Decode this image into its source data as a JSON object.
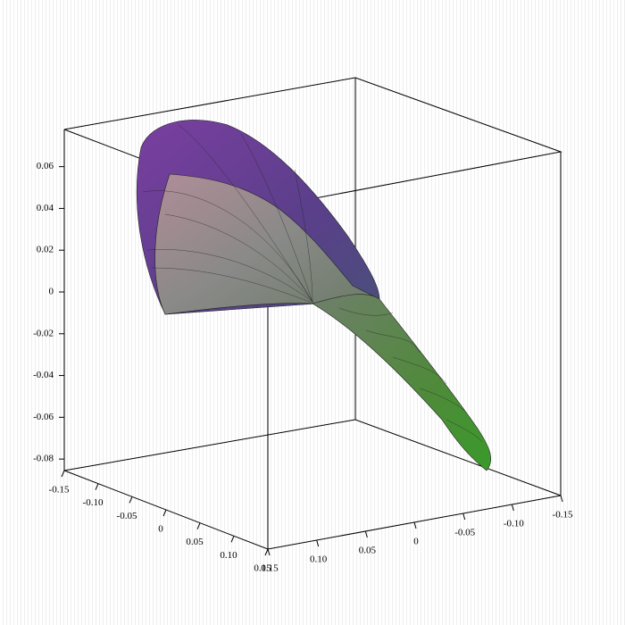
{
  "chart_data": {
    "type": "surface3d",
    "xlim": [
      -0.15,
      0.15
    ],
    "xticks": [
      -0.15,
      {
        "value": -0.1,
        "label": "-0.10"
      },
      -0.05,
      0,
      0.05,
      {
        "value": 0.1,
        "label": "0.10"
      },
      0.15
    ],
    "ylim": [
      -0.15,
      0.15
    ],
    "yticks": [
      -0.15,
      {
        "value": -0.1,
        "label": "-0.10"
      },
      -0.05,
      0,
      0.05,
      {
        "value": 0.1,
        "label": "0.10"
      },
      0.15
    ],
    "zlim": [
      -0.0855,
      0.0778
    ],
    "zticks": [
      -0.08,
      -0.06,
      -0.04,
      -0.02,
      0,
      0.02,
      0.04,
      0.06
    ]
  }
}
